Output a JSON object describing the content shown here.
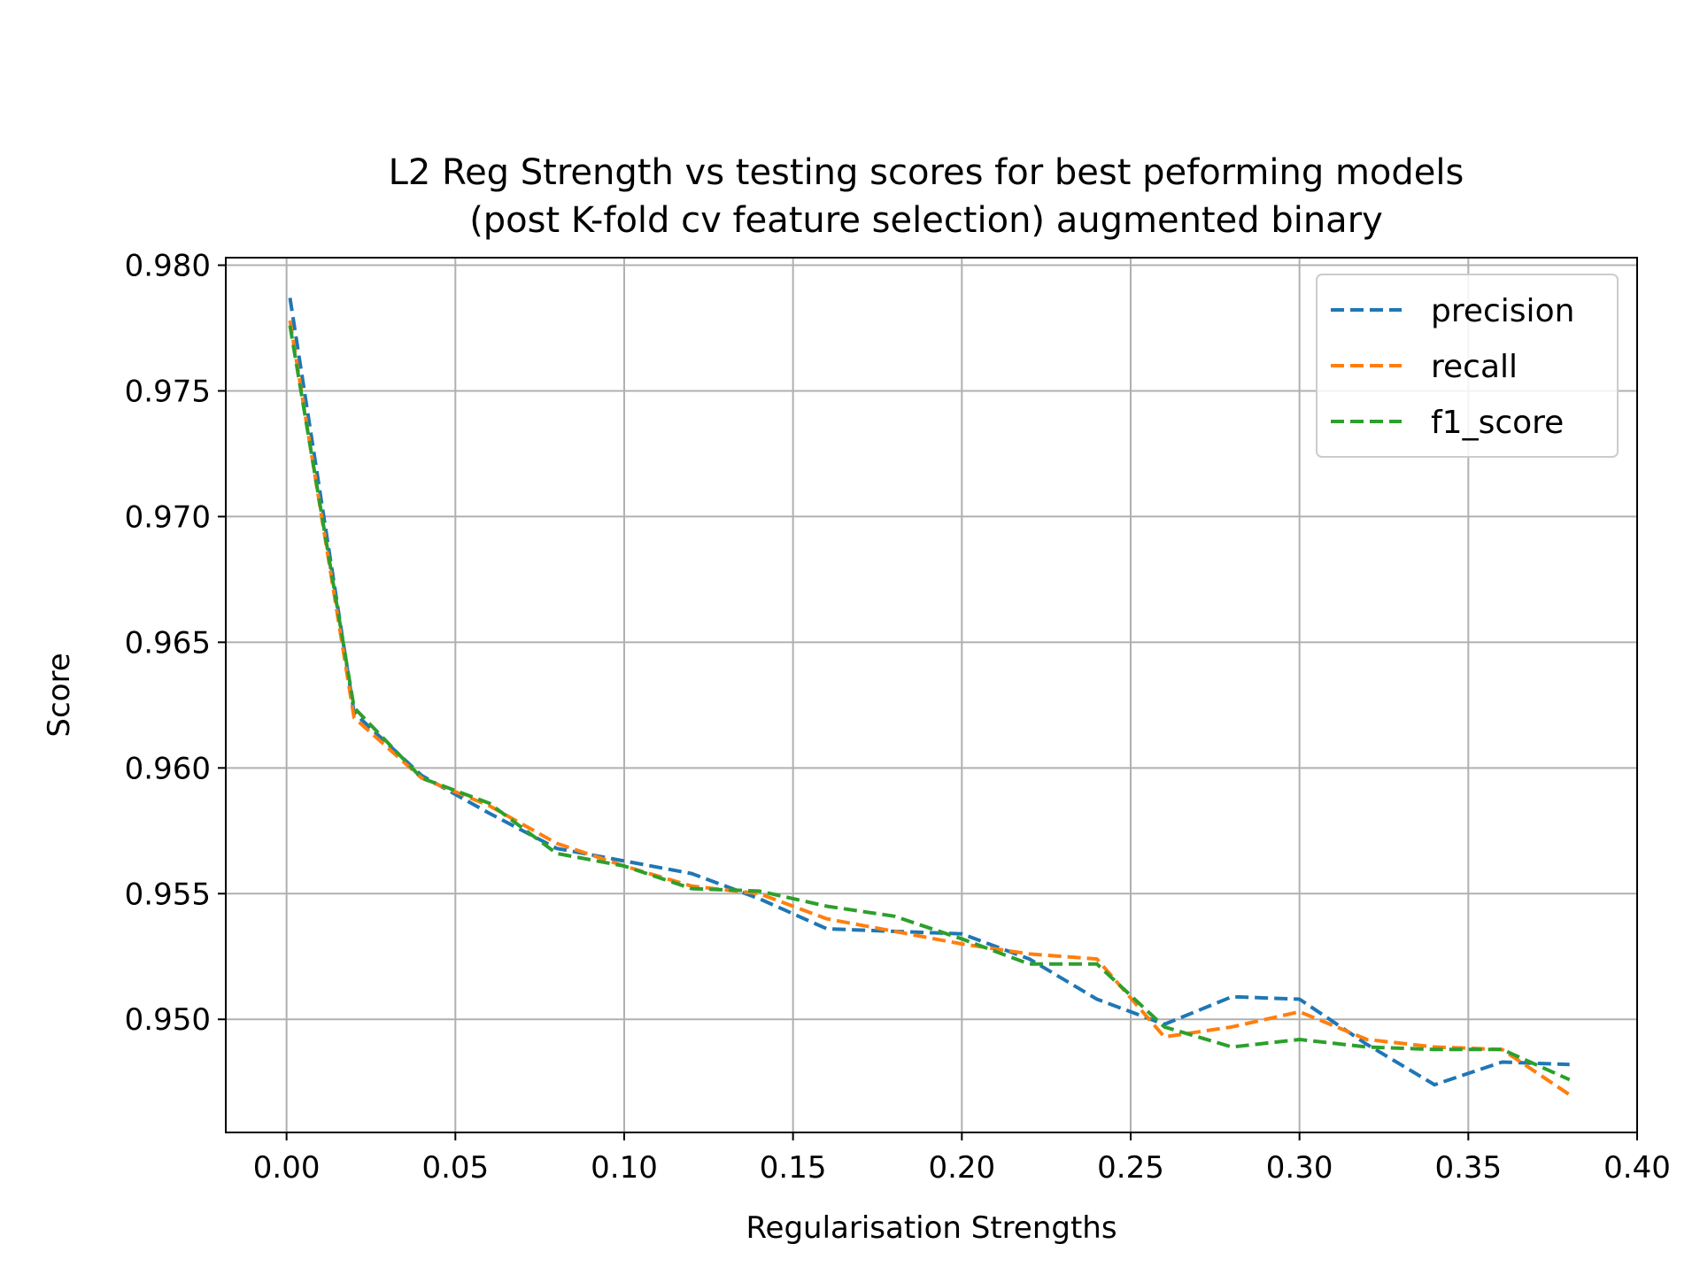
{
  "chart_data": {
    "type": "line",
    "title": [
      "L2 Reg Strength vs testing scores for best peforming models",
      "(post K-fold cv feature selection) augmented binary"
    ],
    "xlabel": "Regularisation Strengths",
    "ylabel": "Score",
    "xlim": [
      -0.018,
      0.4
    ],
    "ylim": [
      0.9455,
      0.9803
    ],
    "xticks": [
      0.0,
      0.05,
      0.1,
      0.15,
      0.2,
      0.25,
      0.3,
      0.35,
      0.4
    ],
    "xtick_labels": [
      "0.00",
      "0.05",
      "0.10",
      "0.15",
      "0.20",
      "0.25",
      "0.30",
      "0.35",
      "0.40"
    ],
    "yticks": [
      0.95,
      0.955,
      0.96,
      0.965,
      0.97,
      0.975,
      0.98
    ],
    "ytick_labels": [
      "0.950",
      "0.955",
      "0.960",
      "0.965",
      "0.970",
      "0.975",
      "0.980"
    ],
    "grid": true,
    "legend_position": "top-right",
    "x": [
      0.001,
      0.02,
      0.04,
      0.06,
      0.08,
      0.1,
      0.12,
      0.14,
      0.16,
      0.18,
      0.2,
      0.22,
      0.24,
      0.26,
      0.28,
      0.3,
      0.32,
      0.34,
      0.36,
      0.38
    ],
    "series": [
      {
        "name": "precision",
        "color": "#1f77b4",
        "values": [
          0.9787,
          0.9622,
          0.9597,
          0.9582,
          0.9568,
          0.9563,
          0.9558,
          0.9548,
          0.9536,
          0.9535,
          0.9534,
          0.9524,
          0.9508,
          0.9498,
          0.9509,
          0.9508,
          0.949,
          0.9474,
          0.9483,
          0.9482
        ]
      },
      {
        "name": "recall",
        "color": "#ff7f0e",
        "values": [
          0.9778,
          0.962,
          0.9596,
          0.9585,
          0.957,
          0.9561,
          0.9553,
          0.955,
          0.954,
          0.9535,
          0.953,
          0.9526,
          0.9524,
          0.9493,
          0.9497,
          0.9503,
          0.9492,
          0.9489,
          0.9488,
          0.947
        ]
      },
      {
        "name": "f1_score",
        "color": "#2ca02c",
        "values": [
          0.9776,
          0.9624,
          0.9596,
          0.9586,
          0.9566,
          0.9561,
          0.9552,
          0.9551,
          0.9545,
          0.9541,
          0.9532,
          0.9522,
          0.9522,
          0.9497,
          0.9489,
          0.9492,
          0.9489,
          0.9488,
          0.9488,
          0.9476
        ]
      }
    ]
  }
}
